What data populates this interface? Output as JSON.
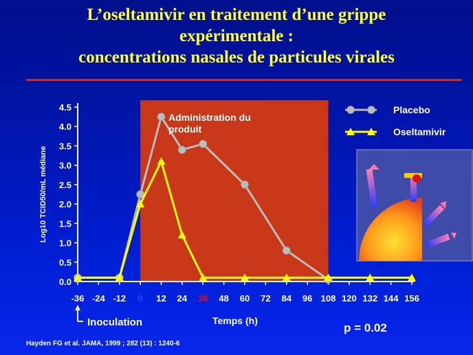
{
  "slide": {
    "title_line1": "L’oseltamivir en traitement d’une grippe",
    "title_line2": "expérimentale :",
    "title_line3": "concentrations nasales de particules virales",
    "citation": "Hayden FG et al. JAMA, 1999 ; 282 (13) : 1240-6",
    "p_value": "p = 0.02"
  },
  "colors": {
    "title": "#ffff33",
    "placebo": "#bdbdbd",
    "oseltamivir": "#ffff00",
    "shaded_region": "#c83818",
    "background": "#0016b0"
  },
  "chart_data": {
    "type": "line",
    "xlabel": "Temps (h)",
    "ylabel": "Log10 TCID50/mL médiane",
    "ylim": [
      0,
      4.5
    ],
    "xlim": [
      -36,
      156
    ],
    "x_ticks": [
      "-36",
      "-24",
      "-12",
      "0",
      "12",
      "24",
      "36",
      "48",
      "60",
      "72",
      "84",
      "96",
      "108",
      "120",
      "132",
      "144",
      "156"
    ],
    "highlighted_x_ticks": {
      "0": "#1a4dff",
      "36": "#e0101a"
    },
    "y_ticks": [
      "0.0",
      "0.5",
      "1.0",
      "1.5",
      "2.0",
      "2.5",
      "3.0",
      "3.5",
      "4.0",
      "4.5"
    ],
    "shaded_region": {
      "x_start": 0,
      "x_end": 108,
      "label_line1": "Administration du",
      "label_line2": "produit"
    },
    "annotation": {
      "x": -36,
      "text": "Inoculation"
    },
    "legend_position": "top-right",
    "series": [
      {
        "name": "Placebo",
        "color": "#bdbdbd",
        "marker": "circle",
        "x": [
          -36,
          -12,
          0,
          12,
          24,
          36,
          60,
          84,
          108
        ],
        "y": [
          0.1,
          0.1,
          2.25,
          4.25,
          3.4,
          3.55,
          2.5,
          0.8,
          0.05
        ]
      },
      {
        "name": "Oseltamivir",
        "color": "#ffff00",
        "marker": "triangle",
        "x": [
          -36,
          -12,
          0,
          12,
          24,
          36,
          60,
          84,
          108,
          132,
          156
        ],
        "y": [
          0.1,
          0.1,
          2.0,
          3.1,
          1.2,
          0.1,
          0.1,
          0.1,
          0.1,
          0.1,
          0.1
        ]
      }
    ]
  }
}
